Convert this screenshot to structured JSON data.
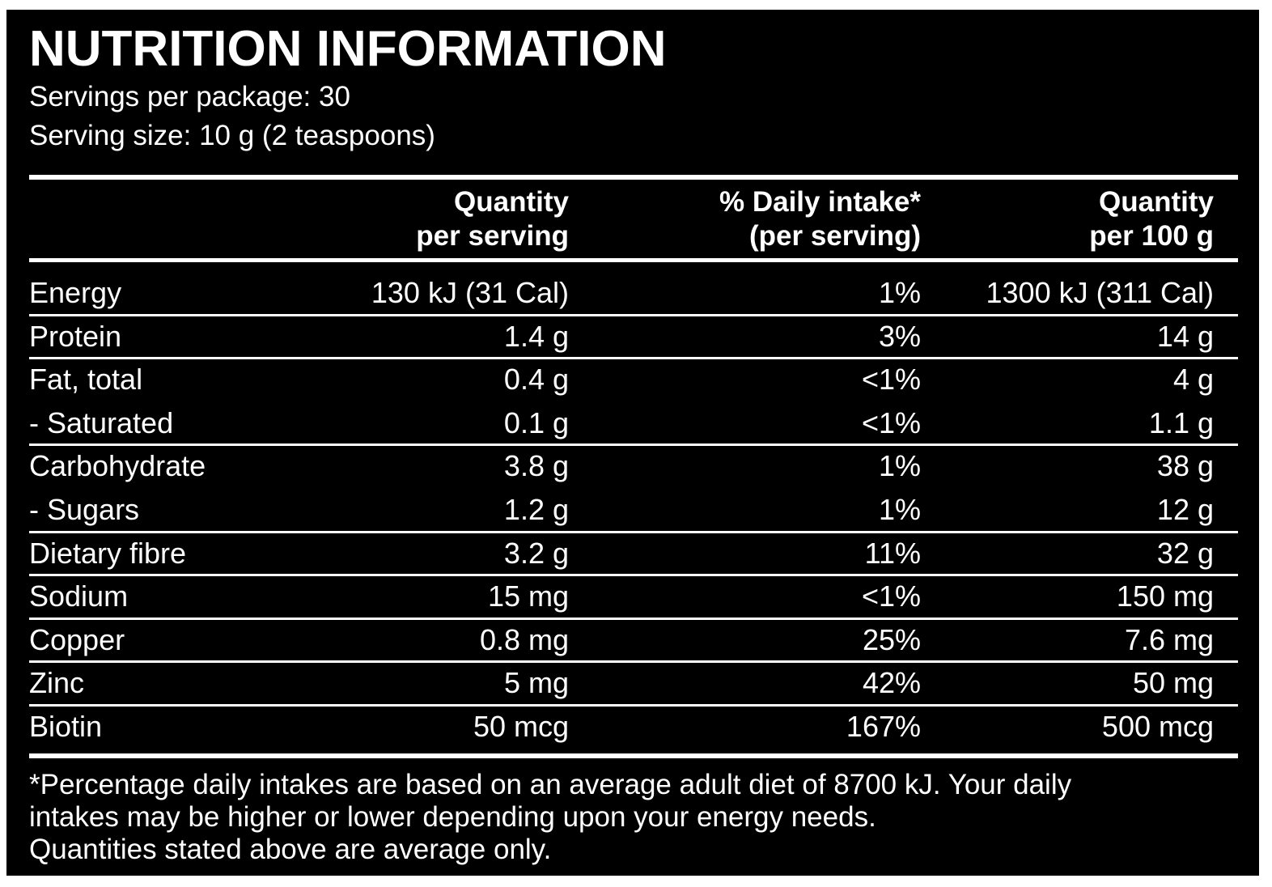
{
  "header": {
    "title": "NUTRITION INFORMATION",
    "servings_per_package": "Servings per package: 30",
    "serving_size": "Serving size: 10 g (2 teaspoons)"
  },
  "table": {
    "columns": [
      [
        "Quantity",
        "per serving"
      ],
      [
        "% Daily intake*",
        "(per serving)"
      ],
      [
        "Quantity",
        "per 100 g"
      ]
    ],
    "rows": [
      [
        "Energy",
        "130 kJ (31 Cal)",
        "1%",
        "1300 kJ (311 Cal)"
      ],
      [
        "Protein",
        "1.4 g",
        "3%",
        "14 g"
      ],
      [
        "Fat, total",
        "0.4 g",
        "<1%",
        "4 g"
      ],
      [
        "- Saturated",
        "0.1 g",
        "<1%",
        "1.1 g"
      ],
      [
        "Carbohydrate",
        "3.8 g",
        "1%",
        "38 g"
      ],
      [
        "- Sugars",
        "1.2 g",
        "1%",
        "12 g"
      ],
      [
        "Dietary fibre",
        "3.2 g",
        "11%",
        "32 g"
      ],
      [
        "Sodium",
        "15 mg",
        "<1%",
        "150 mg"
      ],
      [
        "Copper",
        "0.8 mg",
        "25%",
        "7.6 mg"
      ],
      [
        "Zinc",
        "5 mg",
        "42%",
        "50 mg"
      ],
      [
        "Biotin",
        "50 mcg",
        "167%",
        "500 mcg"
      ]
    ]
  },
  "footnote": [
    "*Percentage daily intakes are based on an average adult diet of 8700 kJ. Your daily",
    "intakes may be higher or lower depending upon your energy needs.",
    "Quantities stated above are average only."
  ]
}
